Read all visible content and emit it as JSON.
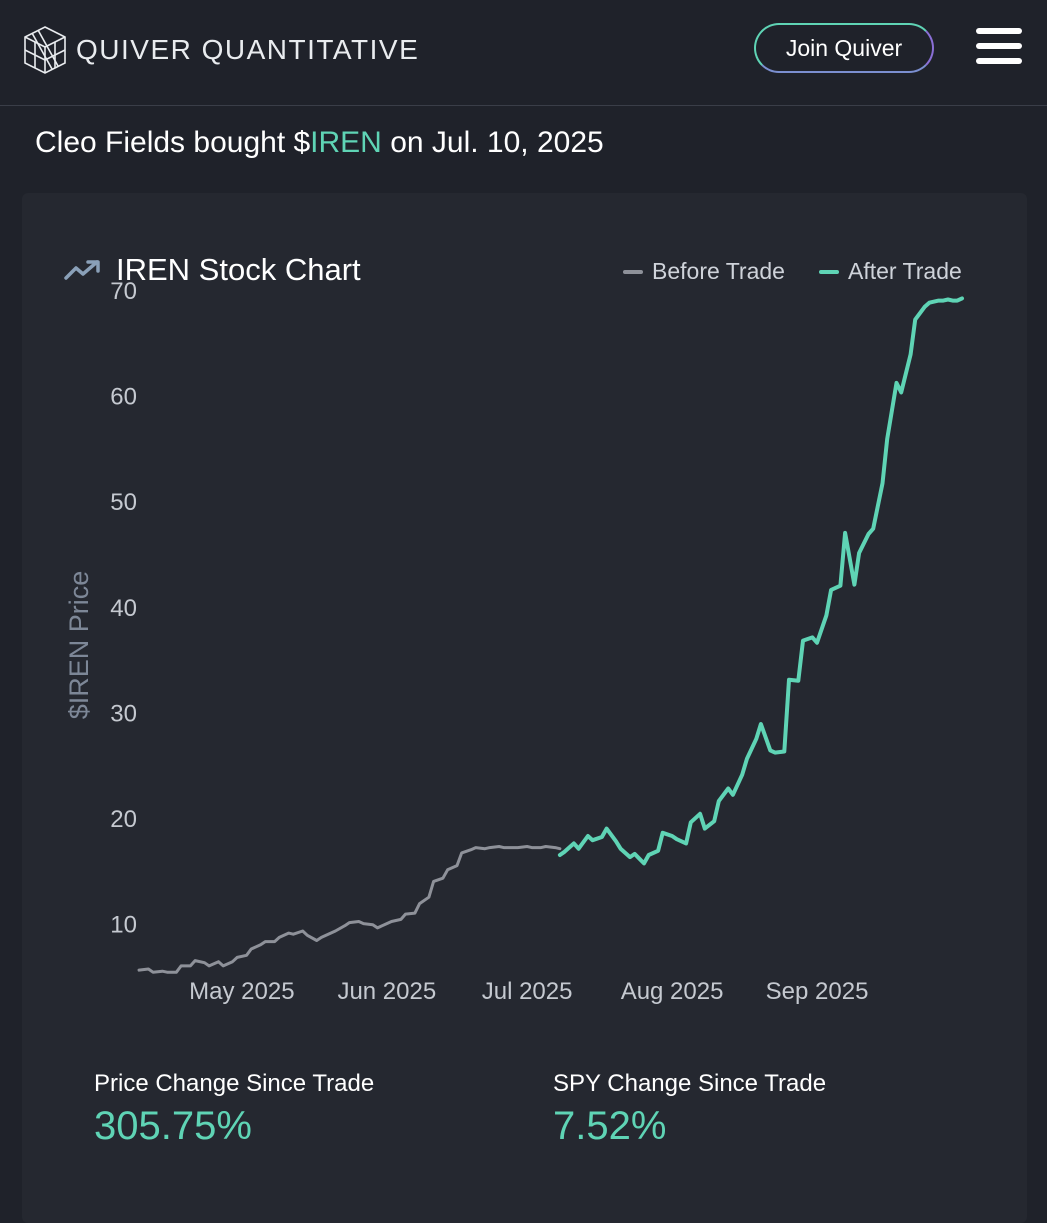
{
  "header": {
    "brand": "QUIVER QUANTITATIVE",
    "join_label": "Join Quiver",
    "logo_icon": "quiver-cube-icon",
    "menu_icon": "hamburger-menu-icon"
  },
  "headline": {
    "prefix": "Cleo Fields bought $",
    "ticker": "IREN",
    "suffix": " on Jul. 10, 2025"
  },
  "card": {
    "title": "IREN Stock Chart",
    "title_icon": "trending-up-icon",
    "legend": [
      {
        "label": "Before Trade",
        "color": "#8e9199"
      },
      {
        "label": "After Trade",
        "color": "#5fd4b5"
      }
    ],
    "stats": [
      {
        "label": "Price Change Since Trade",
        "value": "305.75%"
      },
      {
        "label": "SPY Change Since Trade",
        "value": "7.52%"
      }
    ]
  },
  "colors": {
    "background": "#1f222a",
    "card": "#252830",
    "accent": "#5fd4b5",
    "before": "#8e9199",
    "axis_label": "#7d8797",
    "tick": "#c5c9d0"
  },
  "chart_data": {
    "type": "line",
    "title": "IREN Stock Chart",
    "xlabel": "",
    "ylabel": "$IREN Price",
    "ylim": [
      4,
      70
    ],
    "yticks": [
      10,
      20,
      30,
      40,
      50,
      60,
      70
    ],
    "xlim": [
      0,
      176
    ],
    "xticks": [
      {
        "label": "May 2025",
        "x": 22
      },
      {
        "label": "Jun 2025",
        "x": 53
      },
      {
        "label": "Jul 2025",
        "x": 83
      },
      {
        "label": "Aug 2025",
        "x": 114
      },
      {
        "label": "Sep 2025",
        "x": 145
      }
    ],
    "grid": false,
    "legend_position": "top-right",
    "series": [
      {
        "name": "Before Trade",
        "color": "#8e9199",
        "x": [
          0,
          2,
          3,
          5,
          6,
          8,
          9,
          11,
          12,
          14,
          15,
          17,
          18,
          20,
          21,
          23,
          24,
          26,
          27,
          29,
          30,
          32,
          33,
          35,
          36,
          38,
          39,
          41,
          42,
          44,
          45,
          47,
          48,
          50,
          51,
          53,
          54,
          56,
          57,
          59,
          60,
          62,
          63,
          65,
          66,
          68,
          69,
          71,
          72,
          74,
          75,
          77,
          78,
          80,
          81,
          83,
          84,
          86,
          87,
          89,
          90
        ],
        "y": [
          5.6,
          5.7,
          5.4,
          5.5,
          5.4,
          5.4,
          6.0,
          6.0,
          6.5,
          6.3,
          6.0,
          6.4,
          6.0,
          6.4,
          6.8,
          7.0,
          7.6,
          8.0,
          8.3,
          8.3,
          8.7,
          9.1,
          9.0,
          9.3,
          8.9,
          8.4,
          8.7,
          9.1,
          9.3,
          9.8,
          10.1,
          10.2,
          10.0,
          9.9,
          9.6,
          10.0,
          10.2,
          10.4,
          10.9,
          11.0,
          11.9,
          12.5,
          14.0,
          14.3,
          15.1,
          15.5,
          16.7,
          17.0,
          17.2,
          17.1,
          17.2,
          17.3,
          17.2,
          17.2,
          17.2,
          17.3,
          17.2,
          17.2,
          17.3,
          17.2,
          17.1
        ]
      },
      {
        "name": "After Trade",
        "color": "#5fd4b5",
        "x": [
          90,
          91,
          93,
          94,
          96,
          97,
          99,
          100,
          102,
          103,
          105,
          106,
          108,
          109,
          111,
          112,
          114,
          115,
          117,
          118,
          120,
          121,
          123,
          124,
          126,
          127,
          129,
          130,
          132,
          133,
          135,
          136,
          138,
          139,
          141,
          142,
          144,
          145,
          147,
          148,
          150,
          151,
          153,
          154,
          156,
          157,
          159,
          160,
          162,
          163,
          165,
          166,
          168,
          169,
          171,
          172,
          173,
          174,
          175,
          176
        ],
        "y": [
          16.5,
          16.8,
          17.6,
          17.1,
          18.3,
          17.9,
          18.2,
          19.0,
          17.8,
          17.1,
          16.3,
          16.6,
          15.7,
          16.5,
          16.9,
          18.6,
          18.3,
          18.0,
          17.6,
          19.6,
          20.4,
          19.0,
          19.7,
          21.6,
          22.8,
          22.2,
          24.1,
          25.6,
          27.5,
          28.9,
          26.4,
          26.2,
          26.3,
          33.1,
          33.0,
          36.8,
          37.1,
          36.6,
          39.2,
          41.6,
          42.0,
          47.0,
          42.1,
          45.1,
          46.9,
          47.4,
          51.7,
          55.9,
          61.2,
          60.3,
          63.9,
          67.2,
          68.4,
          68.8,
          69.0,
          69.0,
          69.1,
          69.0,
          69.0,
          69.2
        ]
      }
    ]
  }
}
